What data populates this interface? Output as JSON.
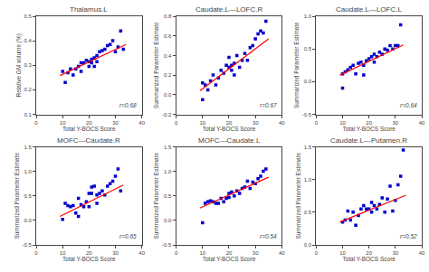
{
  "chart_data": [
    {
      "type": "scatter",
      "title": "Thalamus.L",
      "xlabel": "Total Y-BOCS Score",
      "ylabel": "Relative GM volume (%)",
      "annotations": [
        "r=0.68"
      ],
      "grid": false,
      "xlim": [
        0,
        40
      ],
      "xticks": [
        0,
        10,
        20,
        30,
        40
      ],
      "ylim": [
        0.1,
        0.5
      ],
      "yticks": [
        0.1,
        0.2,
        0.3,
        0.4,
        0.5
      ],
      "series": [
        {
          "type": "scatter",
          "marker": "square",
          "color": "#0000CD",
          "x": [
            10,
            11,
            12,
            13,
            14,
            15,
            16,
            17,
            17,
            18,
            19,
            20,
            20,
            21,
            21,
            22,
            22,
            23,
            23,
            24,
            25,
            26,
            27,
            28,
            29,
            30,
            31,
            32,
            33
          ],
          "values": [
            0.275,
            0.23,
            0.27,
            0.285,
            0.26,
            0.285,
            0.295,
            0.275,
            0.31,
            0.31,
            0.32,
            0.295,
            0.315,
            0.31,
            0.325,
            0.33,
            0.295,
            0.315,
            0.34,
            0.355,
            0.36,
            0.365,
            0.38,
            0.385,
            0.4,
            0.355,
            0.375,
            0.44,
            0.365
          ]
        },
        {
          "type": "line",
          "color": "#FF0000",
          "x": [
            9,
            34
          ],
          "values": [
            0.258,
            0.385
          ]
        }
      ]
    },
    {
      "type": "scatter",
      "title": "Caudate.L---LOFC.R",
      "xlabel": "Total Y-BOCS Score",
      "ylabel": "Summarized Parameter Estimate",
      "annotations": [
        "r=0.67"
      ],
      "grid": false,
      "xlim": [
        0,
        40
      ],
      "xticks": [
        0,
        10,
        20,
        30,
        40
      ],
      "ylim": [
        -0.2,
        0.8
      ],
      "yticks": [
        -0.2,
        {
          "value": 0,
          "label": "0.0"
        },
        0.2,
        0.4,
        0.6,
        0.8
      ],
      "series": [
        {
          "type": "scatter",
          "marker": "square",
          "color": "#0000CD",
          "x": [
            10,
            10,
            11,
            12,
            13,
            14,
            15,
            16,
            17,
            18,
            19,
            20,
            20,
            21,
            21,
            22,
            22,
            23,
            24,
            25,
            26,
            27,
            28,
            29,
            30,
            31,
            32,
            33,
            34
          ],
          "values": [
            0.12,
            -0.05,
            0.1,
            0.05,
            0.14,
            0.2,
            0.1,
            0.17,
            0.25,
            0.22,
            0.3,
            0.28,
            0.38,
            0.3,
            0.25,
            0.32,
            0.2,
            0.4,
            0.28,
            0.35,
            0.42,
            0.35,
            0.48,
            0.5,
            0.57,
            0.62,
            0.65,
            0.63,
            0.75
          ]
        },
        {
          "type": "line",
          "color": "#FF0000",
          "x": [
            9,
            35
          ],
          "values": [
            0.04,
            0.57
          ]
        }
      ]
    },
    {
      "type": "scatter",
      "title": "Caudate.L---LOFC.L",
      "xlabel": "Total Y-BOCS Score",
      "ylabel": "Summarized Parameter Estimate",
      "annotations": [
        "r=0.64"
      ],
      "grid": false,
      "xlim": [
        0,
        40
      ],
      "xticks": [
        0,
        10,
        20,
        30,
        40
      ],
      "ylim": [
        -0.5,
        1.0
      ],
      "yticks": [
        -0.5,
        {
          "value": 0,
          "label": "0.0"
        },
        0.5,
        {
          "value": 1,
          "label": "1.0"
        }
      ],
      "series": [
        {
          "type": "scatter",
          "marker": "square",
          "color": "#0000CD",
          "x": [
            10,
            10,
            11,
            12,
            13,
            14,
            15,
            16,
            17,
            18,
            18,
            19,
            20,
            21,
            22,
            22,
            23,
            24,
            25,
            26,
            27,
            28,
            29,
            30,
            31,
            32
          ],
          "values": [
            0.12,
            -0.1,
            0.15,
            0.18,
            0.22,
            0.25,
            0.12,
            0.28,
            0.3,
            0.25,
            0.1,
            0.32,
            0.35,
            0.38,
            0.3,
            0.42,
            0.38,
            0.45,
            0.42,
            0.5,
            0.48,
            0.55,
            0.5,
            0.55,
            0.55,
            0.87
          ]
        },
        {
          "type": "line",
          "color": "#FF0000",
          "x": [
            9,
            33
          ],
          "values": [
            0.1,
            0.56
          ]
        }
      ]
    },
    {
      "type": "scatter",
      "title": "MOFC---Caudate.R",
      "xlabel": "Total Y-BOCS Score",
      "ylabel": "Summarized Parameter Estimate",
      "annotations": [
        "r=0.65"
      ],
      "grid": false,
      "xlim": [
        0,
        40
      ],
      "xticks": [
        0,
        10,
        20,
        30,
        40
      ],
      "ylim": [
        -0.5,
        1.5
      ],
      "yticks": [
        -0.5,
        {
          "value": 0,
          "label": "0.0"
        },
        0.5,
        {
          "value": 1,
          "label": "1.0"
        },
        {
          "value": 1.5,
          "label": "1.5"
        }
      ],
      "series": [
        {
          "type": "scatter",
          "marker": "square",
          "color": "#0000CD",
          "x": [
            10,
            11,
            12,
            13,
            14,
            15,
            16,
            16,
            17,
            18,
            19,
            20,
            20,
            21,
            21,
            22,
            23,
            23,
            24,
            25,
            26,
            27,
            28,
            29,
            30,
            31,
            32
          ],
          "values": [
            0.02,
            0.35,
            0.3,
            0.28,
            0.3,
            0.15,
            0.08,
            0.45,
            0.32,
            0.28,
            0.38,
            0.28,
            0.55,
            0.55,
            0.68,
            0.7,
            0.35,
            0.52,
            0.55,
            0.6,
            0.52,
            0.7,
            0.75,
            0.8,
            0.9,
            1.05,
            0.6
          ]
        },
        {
          "type": "line",
          "color": "#FF0000",
          "x": [
            9,
            33
          ],
          "values": [
            0.08,
            0.72
          ]
        }
      ]
    },
    {
      "type": "scatter",
      "title": "MOFC---Caudate.L",
      "xlabel": "Total Y-BOCS Score",
      "ylabel": "Summarized Parameter Estimate",
      "annotations": [
        "r=0.54"
      ],
      "grid": false,
      "xlim": [
        0,
        40
      ],
      "xticks": [
        0,
        10,
        20,
        30,
        40
      ],
      "ylim": [
        -0.5,
        1.5
      ],
      "yticks": [
        -0.5,
        {
          "value": 0,
          "label": "0.0"
        },
        0.5,
        {
          "value": 1,
          "label": "1.0"
        },
        {
          "value": 1.5,
          "label": "1.5"
        }
      ],
      "series": [
        {
          "type": "scatter",
          "marker": "square",
          "color": "#0000CD",
          "x": [
            10,
            11,
            12,
            13,
            14,
            15,
            16,
            17,
            18,
            19,
            20,
            20,
            21,
            22,
            23,
            24,
            25,
            26,
            27,
            28,
            29,
            30,
            31,
            32,
            33,
            34
          ],
          "values": [
            -0.05,
            0.35,
            0.38,
            0.4,
            0.38,
            0.35,
            0.35,
            0.45,
            0.38,
            0.45,
            0.47,
            0.55,
            0.58,
            0.5,
            0.6,
            0.55,
            0.65,
            0.68,
            0.8,
            0.65,
            0.78,
            0.75,
            0.85,
            0.9,
            1.0,
            1.05
          ]
        },
        {
          "type": "line",
          "color": "#FF0000",
          "x": [
            9,
            35
          ],
          "values": [
            0.25,
            0.88
          ]
        }
      ]
    },
    {
      "type": "scatter",
      "title": "Caudate.L---Putamen.R",
      "xlabel": "Total Y-BOCS Score",
      "ylabel": "Summarized Parameter Estimate",
      "annotations": [
        "r=0.52"
      ],
      "grid": false,
      "xlim": [
        0,
        40
      ],
      "xticks": [
        0,
        10,
        20,
        30,
        40
      ],
      "ylim": [
        0.0,
        1.5
      ],
      "yticks": [
        {
          "value": 0,
          "label": "0.0"
        },
        0.5,
        {
          "value": 1,
          "label": "1.0"
        },
        {
          "value": 1.5,
          "label": "1.5"
        }
      ],
      "series": [
        {
          "type": "scatter",
          "marker": "square",
          "color": "#0000CD",
          "x": [
            10,
            11,
            12,
            13,
            14,
            15,
            16,
            17,
            18,
            19,
            20,
            21,
            21,
            22,
            23,
            24,
            25,
            26,
            27,
            28,
            29,
            30,
            31,
            32,
            33
          ],
          "values": [
            0.35,
            0.38,
            0.52,
            0.38,
            0.5,
            0.3,
            0.45,
            0.55,
            0.6,
            0.55,
            0.55,
            0.5,
            0.65,
            0.6,
            0.55,
            0.62,
            0.72,
            0.5,
            0.7,
            0.9,
            0.52,
            0.68,
            0.92,
            1.05,
            1.45
          ]
        },
        {
          "type": "line",
          "color": "#FF0000",
          "x": [
            9,
            34
          ],
          "values": [
            0.35,
            0.76
          ]
        }
      ]
    }
  ]
}
